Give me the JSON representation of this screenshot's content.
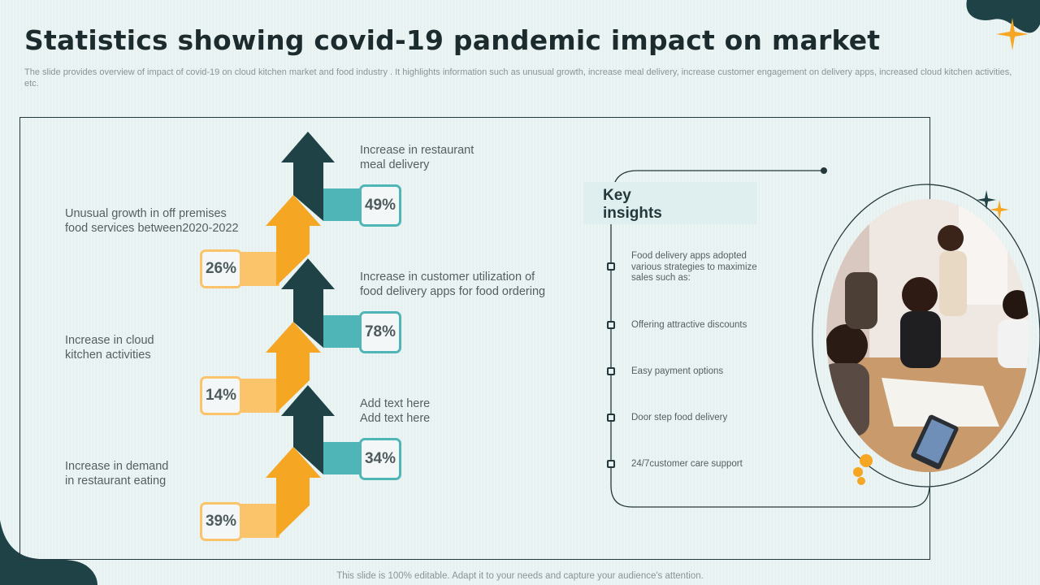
{
  "title": "Statistics showing covid-19 pandemic impact on market",
  "subtitle": "The slide provides overview of impact of covid-19 on cloud kitchen market and food industry . It highlights information such as unusual growth, increase meal delivery, increase customer engagement on delivery apps, increased cloud kitchen activities, etc.",
  "stats": {
    "left": [
      {
        "label": "Unusual growth in off premises\nfood services between2020-2022",
        "value": "26%"
      },
      {
        "label": "Increase in cloud\nkitchen activities",
        "value": "14%"
      },
      {
        "label": "Increase in demand\nin restaurant eating",
        "value": "39%"
      }
    ],
    "right": [
      {
        "label": "Increase in restaurant\nmeal delivery",
        "value": "49%"
      },
      {
        "label": "Increase in customer utilization of\nfood delivery apps for food ordering",
        "value": "78%"
      },
      {
        "label": "Add text here\nAdd text here",
        "value": "34%"
      }
    ]
  },
  "insights": {
    "title": "Key\ninsights",
    "items": [
      "Food delivery apps adopted various strategies to maximize sales such as:",
      "Offering attractive discounts",
      "Easy payment options",
      "Door step food delivery",
      "24/7customer care support"
    ]
  },
  "footer": "This slide is 100% editable. Adapt it to your needs and capture your audience's attention.",
  "colors": {
    "dark_teal": "#1e4246",
    "teal": "#4fb5b6",
    "orange": "#f5a623",
    "light_orange": "#fbc46b",
    "background": "#e7f1f1"
  }
}
